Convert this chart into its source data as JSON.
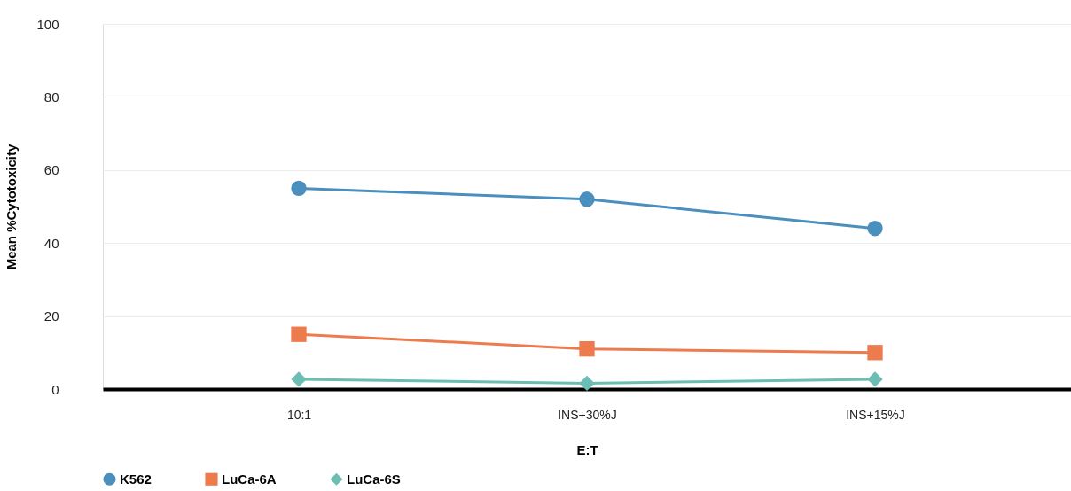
{
  "chart_data": {
    "type": "line",
    "xlabel": "E:T",
    "ylabel": "Mean %Cytotoxicity",
    "categories": [
      "10:1",
      "INS+30%J",
      "INS+15%J"
    ],
    "series": [
      {
        "name": "K562",
        "color": "#4a8fbd",
        "marker": "circle",
        "values": [
          55,
          52,
          44
        ]
      },
      {
        "name": "LuCa-6A",
        "color": "#ec7b4d",
        "marker": "square",
        "values": [
          15,
          11,
          10
        ]
      },
      {
        "name": "LuCa-6S",
        "color": "#6cbdb4",
        "marker": "diamond",
        "values": [
          2.7,
          1.6,
          2.7
        ]
      }
    ],
    "ylim": [
      0,
      100
    ],
    "yticks": [
      0,
      20,
      40,
      60,
      80,
      100
    ],
    "grid": "y",
    "legend": "bottom",
    "line_style": "solid"
  }
}
